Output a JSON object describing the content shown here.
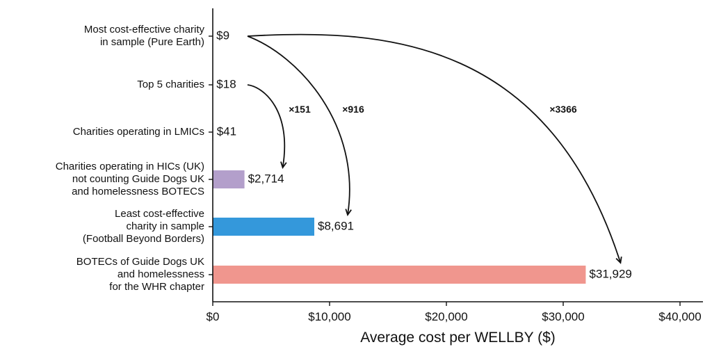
{
  "chart_data": {
    "type": "bar",
    "orientation": "horizontal",
    "categories": [
      [
        "Most cost-effective charity",
        "in sample (Pure Earth)"
      ],
      [
        "Top 5 charities"
      ],
      [
        "Charities operating in LMICs"
      ],
      [
        "Charities operating in HICs (UK)",
        "not counting Guide Dogs UK",
        "and homelessness BOTECS"
      ],
      [
        "Least cost-effective",
        "charity in sample",
        "(Football Beyond Borders)"
      ],
      [
        "BOTECs of Guide Dogs UK",
        "and homelessness",
        "for the WHR chapter"
      ]
    ],
    "values": [
      9,
      18,
      41,
      2714,
      8691,
      31929
    ],
    "value_labels": [
      "$9",
      "$18",
      "$41",
      "$2,714",
      "$8,691",
      "$31,929"
    ],
    "colors": [
      "#b39fcb",
      "#b39fcb",
      "#b39fcb",
      "#b39fcb",
      "#3498db",
      "#f0968e"
    ],
    "xlabel": "Average cost per WELLBY ($)",
    "xlim": [
      0,
      42000
    ],
    "xticks": [
      0,
      10000,
      20000,
      30000,
      40000
    ],
    "xtick_labels": [
      "$0",
      "$10,000",
      "$20,000",
      "$30,000",
      "$40,000"
    ],
    "grid": false,
    "annotations": [
      {
        "label": "×151",
        "from_category": 1,
        "to_category": 3
      },
      {
        "label": "×916",
        "from_category": 0,
        "to_category": 4
      },
      {
        "label": "×3366",
        "from_category": 0,
        "to_category": 5
      }
    ]
  }
}
